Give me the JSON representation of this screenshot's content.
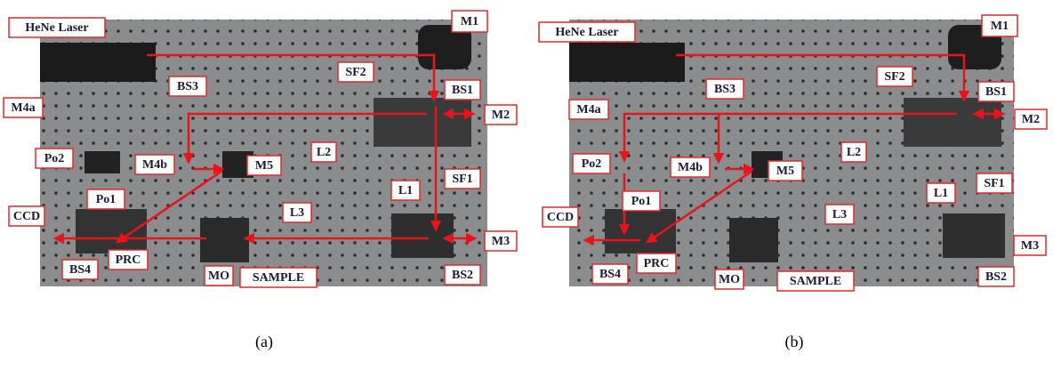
{
  "panels": [
    {
      "caption": "(a)",
      "labels": [
        "HeNe Laser",
        "M1",
        "SF2",
        "BS1",
        "M2",
        "M4a",
        "BS3",
        "L2",
        "Po2",
        "M4b",
        "M5",
        "SF1",
        "L1",
        "Po1",
        "CCD",
        "L3",
        "M3",
        "BS4",
        "PRC",
        "MO",
        "SAMPLE",
        "BS2"
      ]
    },
    {
      "caption": "(b)",
      "labels": [
        "HeNe Laser",
        "M1",
        "SF2",
        "BS1",
        "M2",
        "M4a",
        "BS3",
        "L2",
        "Po2",
        "M4b",
        "M5",
        "SF1",
        "L1",
        "Po1",
        "CCD",
        "L3",
        "M3",
        "BS4",
        "PRC",
        "MO",
        "SAMPLE",
        "BS2"
      ]
    }
  ]
}
